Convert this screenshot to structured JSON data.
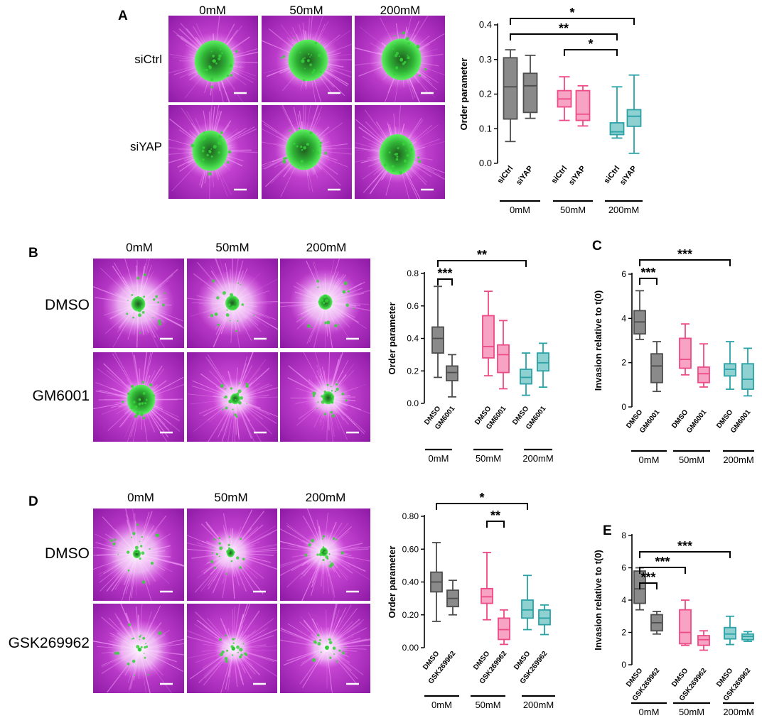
{
  "colors": {
    "gray": "#4d4d4d",
    "gray_fill": "#8a8a8a",
    "pink": "#ee4a86",
    "pink_fill": "#f7a3c3",
    "teal": "#2aa2a6",
    "teal_fill": "#8fd1d0",
    "micro_bg": "#b81fcf",
    "micro_green": "#36d13a",
    "micro_white": "#f3e7f7"
  },
  "panels": {
    "A": {
      "letter": "A",
      "columns": [
        "0mM",
        "50mM",
        "200mM"
      ],
      "rows": [
        "siCtrl",
        "siYAP"
      ]
    },
    "B": {
      "letter": "B",
      "columns": [
        "0mM",
        "50mM",
        "200mM"
      ],
      "rows": [
        "DMSO",
        "GM6001"
      ]
    },
    "C": {
      "letter": "C"
    },
    "D": {
      "letter": "D",
      "columns": [
        "0mM",
        "50mM",
        "200mM"
      ],
      "rows": [
        "DMSO",
        "GSK269962"
      ]
    },
    "E": {
      "letter": "E"
    }
  },
  "chart_data": [
    {
      "id": "A",
      "type": "box",
      "ylabel": "Order parameter",
      "ylim": [
        0,
        0.4
      ],
      "yticks": [
        "0.0",
        "0.1",
        "0.2",
        "0.3",
        "0.4"
      ],
      "ytick_values": [
        0,
        0.1,
        0.2,
        0.3,
        0.4
      ],
      "groups": [
        "0mM",
        "50mM",
        "200mM"
      ],
      "boxes": [
        {
          "label": "siCtrl",
          "group": 0,
          "color": "gray",
          "min": 0.063,
          "q1": 0.128,
          "median": 0.221,
          "q3": 0.305,
          "max": 0.328
        },
        {
          "label": "siYAP",
          "group": 0,
          "color": "gray",
          "min": 0.13,
          "q1": 0.147,
          "median": 0.224,
          "q3": 0.26,
          "max": 0.312
        },
        {
          "label": "siCtrl",
          "group": 1,
          "color": "pink",
          "min": 0.124,
          "q1": 0.163,
          "median": 0.186,
          "q3": 0.21,
          "max": 0.25
        },
        {
          "label": "siYAP",
          "group": 1,
          "color": "pink",
          "min": 0.108,
          "q1": 0.124,
          "median": 0.142,
          "q3": 0.21,
          "max": 0.224
        },
        {
          "label": "siCtrl",
          "group": 2,
          "color": "teal",
          "min": 0.073,
          "q1": 0.083,
          "median": 0.091,
          "q3": 0.117,
          "max": 0.221
        },
        {
          "label": "siYAP",
          "group": 2,
          "color": "teal",
          "min": 0.029,
          "q1": 0.107,
          "median": 0.136,
          "q3": 0.155,
          "max": 0.255
        }
      ],
      "significance": [
        {
          "from": 0,
          "to": 5,
          "label": "*"
        },
        {
          "from": 0,
          "to": 4,
          "label": "**"
        },
        {
          "from": 2,
          "to": 4,
          "label": "*"
        }
      ]
    },
    {
      "id": "B",
      "type": "box",
      "ylabel": "Order parameter",
      "ylim": [
        0,
        0.8
      ],
      "yticks": [
        "0.0",
        "0.2",
        "0.4",
        "0.6",
        "0.8"
      ],
      "ytick_values": [
        0,
        0.2,
        0.4,
        0.6,
        0.8
      ],
      "groups": [
        "0mM",
        "50mM",
        "200mM"
      ],
      "boxes": [
        {
          "label": "DMSO",
          "group": 0,
          "color": "gray",
          "min": 0.16,
          "q1": 0.31,
          "median": 0.4,
          "q3": 0.47,
          "max": 0.72
        },
        {
          "label": "GM6001",
          "group": 0,
          "color": "gray",
          "min": 0.04,
          "q1": 0.14,
          "median": 0.19,
          "q3": 0.23,
          "max": 0.3
        },
        {
          "label": "DMSO",
          "group": 1,
          "color": "pink",
          "min": 0.17,
          "q1": 0.28,
          "median": 0.35,
          "q3": 0.54,
          "max": 0.69
        },
        {
          "label": "GM6001",
          "group": 1,
          "color": "pink",
          "min": 0.09,
          "q1": 0.19,
          "median": 0.3,
          "q3": 0.36,
          "max": 0.51
        },
        {
          "label": "DMSO",
          "group": 2,
          "color": "teal",
          "min": 0.05,
          "q1": 0.12,
          "median": 0.16,
          "q3": 0.21,
          "max": 0.31
        },
        {
          "label": "GM6001",
          "group": 2,
          "color": "teal",
          "min": 0.1,
          "q1": 0.2,
          "median": 0.25,
          "q3": 0.31,
          "max": 0.37
        }
      ],
      "significance": [
        {
          "from": 0,
          "to": 4,
          "label": "**"
        },
        {
          "from": 0,
          "to": 1,
          "label": "***"
        }
      ]
    },
    {
      "id": "C",
      "type": "box",
      "ylabel": "Invasion relative to t(0)",
      "ylim": [
        0,
        6
      ],
      "yticks": [
        "0",
        "2",
        "4",
        "6"
      ],
      "ytick_values": [
        0,
        2,
        4,
        6
      ],
      "groups": [
        "0mM",
        "50mM",
        "200mM"
      ],
      "boxes": [
        {
          "label": "DMSO",
          "group": 0,
          "color": "gray",
          "min": 3.05,
          "q1": 3.3,
          "median": 3.84,
          "q3": 4.35,
          "max": 5.25
        },
        {
          "label": "GM6001",
          "group": 0,
          "color": "gray",
          "min": 0.7,
          "q1": 1.1,
          "median": 1.85,
          "q3": 2.4,
          "max": 2.95
        },
        {
          "label": "DMSO",
          "group": 1,
          "color": "pink",
          "min": 1.45,
          "q1": 1.75,
          "median": 2.15,
          "q3": 3.1,
          "max": 3.75
        },
        {
          "label": "GM6001",
          "group": 1,
          "color": "pink",
          "min": 0.9,
          "q1": 1.1,
          "median": 1.5,
          "q3": 1.8,
          "max": 2.85
        },
        {
          "label": "DMSO",
          "group": 2,
          "color": "teal",
          "min": 0.8,
          "q1": 1.4,
          "median": 1.7,
          "q3": 1.95,
          "max": 2.95
        },
        {
          "label": "GM6001",
          "group": 2,
          "color": "teal",
          "min": 0.5,
          "q1": 0.8,
          "median": 1.25,
          "q3": 1.95,
          "max": 2.65
        }
      ],
      "significance": [
        {
          "from": 0,
          "to": 4,
          "label": "***"
        },
        {
          "from": 0,
          "to": 1,
          "label": "***"
        }
      ]
    },
    {
      "id": "D",
      "type": "box",
      "ylabel": "Order parameter",
      "ylim": [
        0,
        0.8
      ],
      "yticks": [
        "0.00",
        "0.20",
        "0.40",
        "0.60",
        "0.80"
      ],
      "ytick_values": [
        0,
        0.2,
        0.4,
        0.6,
        0.8
      ],
      "groups": [
        "0mM",
        "50mM",
        "200mM"
      ],
      "boxes": [
        {
          "label": "DMSO",
          "group": 0,
          "color": "gray",
          "min": 0.16,
          "q1": 0.34,
          "median": 0.4,
          "q3": 0.46,
          "max": 0.64
        },
        {
          "label": "GSK269962",
          "group": 0,
          "color": "gray",
          "min": 0.2,
          "q1": 0.25,
          "median": 0.3,
          "q3": 0.35,
          "max": 0.41
        },
        {
          "label": "DMSO",
          "group": 1,
          "color": "pink",
          "min": 0.17,
          "q1": 0.27,
          "median": 0.31,
          "q3": 0.36,
          "max": 0.58
        },
        {
          "label": "GSK269962",
          "group": 1,
          "color": "pink",
          "min": 0.02,
          "q1": 0.05,
          "median": 0.11,
          "q3": 0.18,
          "max": 0.23
        },
        {
          "label": "DMSO",
          "group": 2,
          "color": "teal",
          "min": 0.11,
          "q1": 0.18,
          "median": 0.23,
          "q3": 0.29,
          "max": 0.44
        },
        {
          "label": "GSK269962",
          "group": 2,
          "color": "teal",
          "min": 0.08,
          "q1": 0.14,
          "median": 0.18,
          "q3": 0.23,
          "max": 0.26
        }
      ],
      "significance": [
        {
          "from": 0,
          "to": 4,
          "label": "*"
        },
        {
          "from": 2,
          "to": 3,
          "label": "**"
        }
      ]
    },
    {
      "id": "E",
      "type": "box",
      "ylabel": "Invasion relative to t(0)",
      "ylim": [
        0,
        8
      ],
      "yticks": [
        "0",
        "2",
        "4",
        "6",
        "8"
      ],
      "ytick_values": [
        0,
        2,
        4,
        6,
        8
      ],
      "groups": [
        "0mM",
        "50mM",
        "200mM"
      ],
      "boxes": [
        {
          "label": "DMSO",
          "group": 0,
          "color": "gray",
          "min": 3.4,
          "q1": 3.8,
          "median": 4.7,
          "q3": 5.8,
          "max": 6.0
        },
        {
          "label": "GSK269962",
          "group": 0,
          "color": "gray",
          "min": 1.9,
          "q1": 2.1,
          "median": 2.6,
          "q3": 3.1,
          "max": 3.3
        },
        {
          "label": "DMSO",
          "group": 1,
          "color": "pink",
          "min": 1.2,
          "q1": 1.3,
          "median": 2.0,
          "q3": 3.4,
          "max": 4.0
        },
        {
          "label": "GSK269962",
          "group": 1,
          "color": "pink",
          "min": 0.9,
          "q1": 1.2,
          "median": 1.55,
          "q3": 1.8,
          "max": 2.1
        },
        {
          "label": "DMSO",
          "group": 2,
          "color": "teal",
          "min": 1.25,
          "q1": 1.6,
          "median": 1.9,
          "q3": 2.3,
          "max": 3.0
        },
        {
          "label": "GSK269962",
          "group": 2,
          "color": "teal",
          "min": 1.45,
          "q1": 1.55,
          "median": 1.75,
          "q3": 1.9,
          "max": 2.05
        }
      ],
      "significance": [
        {
          "from": 0,
          "to": 4,
          "label": "***"
        },
        {
          "from": 0,
          "to": 2,
          "label": "***"
        },
        {
          "from": 0,
          "to": 1,
          "label": "***"
        }
      ]
    }
  ]
}
